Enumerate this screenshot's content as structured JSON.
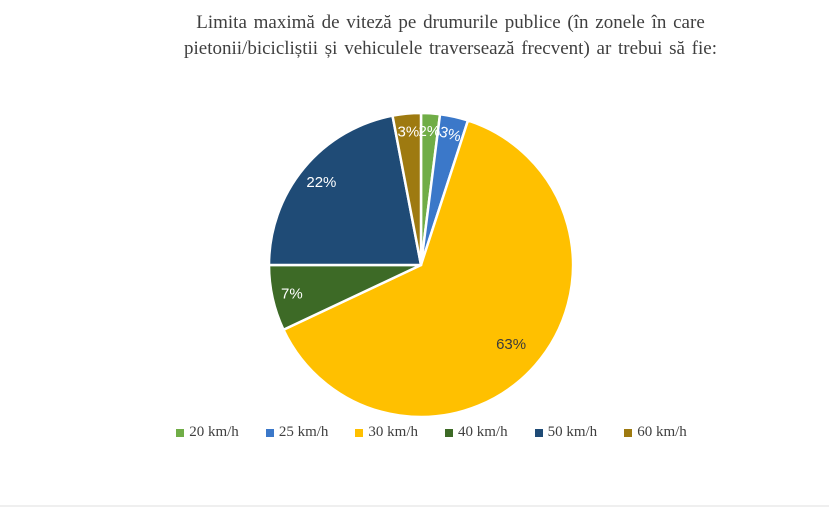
{
  "chart_data": {
    "type": "pie",
    "title": "Limita maximă de viteză pe drumurile publice (în zonele în care pietonii/bicicliștii și vehiculele traversează frecvent) ar trebui să fie:",
    "title_lines": [
      "Limita maximă de viteză pe drumurile publice (în zonele în care",
      "pietonii/bicicliștii și vehiculele traversează frecvent) ar trebui să fie:"
    ],
    "categories": [
      "20 km/h",
      "25 km/h",
      "30 km/h",
      "40 km/h",
      "50 km/h",
      "60 km/h"
    ],
    "values": [
      2,
      3,
      63,
      7,
      22,
      3
    ],
    "unit": "%",
    "data_labels": [
      "2%",
      "3%",
      "63%",
      "7%",
      "22%",
      "3%"
    ],
    "colors": [
      "#70AD47",
      "#3B78C9",
      "#FFC000",
      "#3D6A26",
      "#1F4B76",
      "#9E7A10"
    ],
    "label_text_colors": [
      "#FFFFFF",
      "#FFFFFF",
      "#3B3B3B",
      "#FFFFFF",
      "#FFFFFF",
      "#FFFFFF"
    ],
    "start_angle_deg": 0,
    "direction": "clockwise",
    "legend_position": "bottom",
    "slice_border_color": "#FFFFFF",
    "label_layout": {
      "radius_fraction": [
        0.88,
        0.88,
        0.79,
        0.87,
        0.85,
        0.88
      ],
      "rotation_deg": [
        0,
        15,
        0,
        0,
        0,
        0
      ]
    },
    "text_color": "#3F3F3F",
    "background_color": "#FFFFFF"
  }
}
